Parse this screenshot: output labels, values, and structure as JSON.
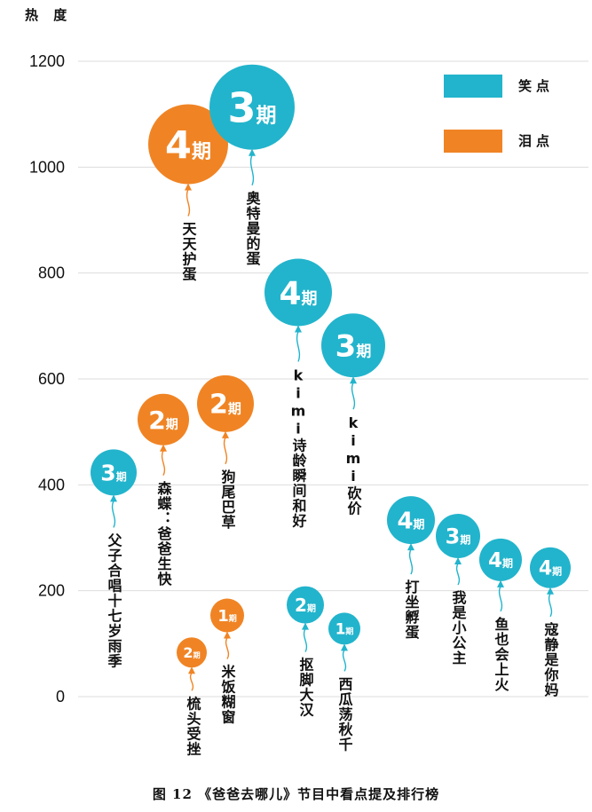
{
  "caption": "图 12 《爸爸去哪儿》节目中看点提及排行榜",
  "colors": {
    "laugh": "#22b4cc",
    "tear": "#f08424",
    "grid": "#dddddd",
    "text": "#111111"
  },
  "chart_data": {
    "type": "scatter",
    "style": "balloon",
    "ylabel": "热 度",
    "ylim": [
      0,
      1200
    ],
    "yticks": [
      0,
      200,
      400,
      600,
      800,
      1000,
      1200
    ],
    "grid": true,
    "legend_position": "top-right",
    "legend": [
      {
        "key": "laugh",
        "label": "笑点"
      },
      {
        "key": "tear",
        "label": "泪点"
      }
    ],
    "points": [
      {
        "label": "父子合唱十七岁雨季",
        "episode": "3",
        "value": 420,
        "type": "laugh"
      },
      {
        "label": "森蝶：爸爸生快",
        "episode": "2",
        "value": 520,
        "type": "tear"
      },
      {
        "label": "梳头受挫",
        "episode": "2",
        "value": 80,
        "type": "tear"
      },
      {
        "label": "天天护蛋",
        "episode": "4",
        "value": 1040,
        "type": "tear"
      },
      {
        "label": "狗尾巴草",
        "episode": "2",
        "value": 550,
        "type": "tear"
      },
      {
        "label": "米饭糊窗",
        "episode": "1",
        "value": 150,
        "type": "tear"
      },
      {
        "label": "奥特曼的蛋",
        "episode": "3",
        "value": 1110,
        "type": "laugh"
      },
      {
        "label": "kimi诗龄瞬间和好",
        "episode": "4",
        "value": 760,
        "type": "laugh"
      },
      {
        "label": "抠脚大汉",
        "episode": "2",
        "value": 170,
        "type": "laugh"
      },
      {
        "label": "kimi砍价",
        "episode": "3",
        "value": 660,
        "type": "laugh"
      },
      {
        "label": "西瓜荡秋千",
        "episode": "1",
        "value": 125,
        "type": "laugh"
      },
      {
        "label": "打坐孵蛋",
        "episode": "4",
        "value": 330,
        "type": "laugh"
      },
      {
        "label": "我是小公主",
        "episode": "3",
        "value": 300,
        "type": "laugh"
      },
      {
        "label": "鱼也会上火",
        "episode": "4",
        "value": 255,
        "type": "laugh"
      },
      {
        "label": "寇静是你妈",
        "episode": "4",
        "value": 240,
        "type": "laugh"
      }
    ]
  },
  "episode_suffix": "期"
}
